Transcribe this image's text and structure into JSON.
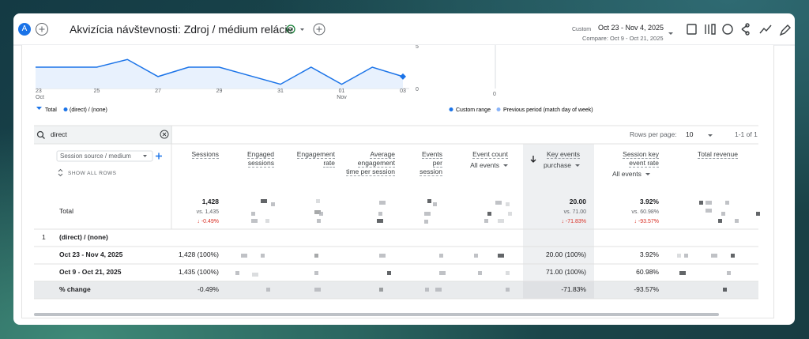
{
  "header": {
    "avatar": "A",
    "title": "Akvizícia návštevnosti: Zdroj / médium relácie",
    "date_label": "Custom",
    "date_range": "Oct 23 - Nov 4, 2025",
    "compare": "Compare: Oct 9 - Oct 21, 2025"
  },
  "trend": {
    "x_labels": [
      {
        "day": "23",
        "month": "Oct"
      },
      null,
      {
        "day": "25"
      },
      null,
      {
        "day": "27"
      },
      null,
      {
        "day": "29"
      },
      null,
      {
        "day": "31"
      },
      null,
      {
        "day": "01",
        "month": "Nov"
      },
      null,
      {
        "day": "03"
      }
    ],
    "values": [
      2.5,
      2.5,
      2.5,
      3.4,
      1.4,
      2.5,
      2.5,
      1.5,
      0.5,
      2.5,
      0.5,
      2.5,
      1.4
    ],
    "ylim": [
      0,
      5
    ],
    "yticks": [
      0,
      5
    ],
    "compare_yticks": [
      0
    ],
    "color": "#1a73e8",
    "legend": [
      "Total",
      "(direct) / (none)"
    ],
    "compare_legend": [
      "Custom range",
      "Previous period (match day of week)"
    ]
  },
  "table": {
    "search": "direct",
    "rows_per_page_label": "Rows per page:",
    "rows_per_page": 10,
    "pagination": "1-1 of 1",
    "dimension": "Session source / medium",
    "show_all_rows": "SHOW ALL ROWS",
    "columns": [
      {
        "name": "Sessions"
      },
      {
        "name": "Engaged sessions"
      },
      {
        "name": "Engagement rate"
      },
      {
        "name": "Average engagement time per session"
      },
      {
        "name": "Events per session"
      },
      {
        "name": "Event count",
        "filter": "All events"
      },
      {
        "name": "Key events",
        "filter": "purchase"
      },
      {
        "name": "Session key event rate",
        "filter": "All events"
      },
      {
        "name": "Total revenue"
      }
    ],
    "total": {
      "label": "Total",
      "sessions": {
        "value": "1,428",
        "compare": "vs. 1,435",
        "change": "↓ -0.49%"
      },
      "key_events": {
        "value": "20.00",
        "compare": "vs. 71.00",
        "change": "↓ -71.83%"
      },
      "key_event_rate": {
        "value": "3.92%",
        "compare": "vs. 60.98%",
        "change": "↓ -93.57%"
      }
    },
    "group": {
      "index": 1,
      "label": "(direct) / (none)"
    },
    "rows": [
      {
        "label": "Oct 23 - Nov 4, 2025",
        "sessions": "1,428 (100%)",
        "key_events": "20.00 (100%)",
        "key_event_rate": "3.92%"
      },
      {
        "label": "Oct 9 - Oct 21, 2025",
        "sessions": "1,435 (100%)",
        "key_events": "71.00 (100%)",
        "key_event_rate": "60.98%"
      }
    ],
    "change": {
      "label": "% change",
      "sessions": "-0.49%",
      "key_events": "-71.83%",
      "key_event_rate": "-93.57%"
    }
  }
}
